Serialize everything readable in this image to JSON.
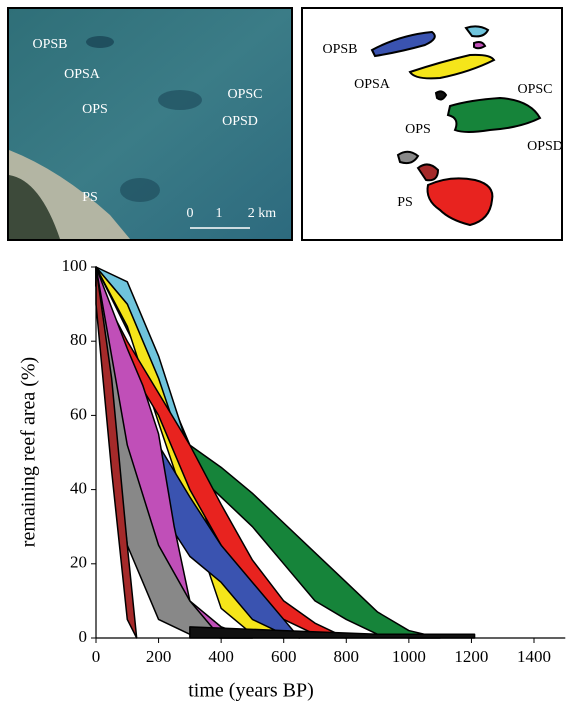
{
  "satellite": {
    "labels": [
      "OPSB",
      "OPSA",
      "OPS",
      "OPSC",
      "OPSD",
      "PS"
    ],
    "scale": [
      "0",
      "1",
      "2 km"
    ]
  },
  "map": {
    "labels": [
      "OPSB",
      "OPSA",
      "OPSC",
      "OPS",
      "OPSD",
      "PS"
    ]
  },
  "chart_data": {
    "type": "band",
    "xlabel": "time (years BP)",
    "ylabel": "remaining reef area (%)",
    "xlim": [
      0,
      1500
    ],
    "xticks": [
      0,
      200,
      400,
      600,
      800,
      1000,
      1200,
      1400
    ],
    "ylim": [
      0,
      100
    ],
    "yticks": [
      0,
      20,
      40,
      60,
      80,
      100
    ],
    "series": [
      {
        "color": "#16843a",
        "x": [
          0,
          200,
          300,
          400,
          500,
          600,
          700,
          800,
          900,
          1000,
          1100
        ],
        "upper": [
          100,
          72,
          52,
          46,
          39,
          31,
          23,
          15,
          7,
          2,
          0
        ],
        "lower": [
          100,
          66,
          46,
          38,
          30,
          20,
          10,
          5,
          1,
          0,
          0
        ]
      },
      {
        "color": "#6fc4dc",
        "x": [
          0,
          100,
          200,
          300,
          400,
          500,
          600
        ],
        "upper": [
          100,
          96,
          76,
          50,
          25,
          9,
          0
        ],
        "lower": [
          100,
          90,
          64,
          40,
          15,
          3,
          0
        ]
      },
      {
        "color": "#f5e51a",
        "x": [
          0,
          100,
          200,
          300,
          400,
          500,
          600
        ],
        "upper": [
          100,
          90,
          70,
          45,
          20,
          8,
          0
        ],
        "lower": [
          100,
          84,
          58,
          33,
          8,
          1,
          0
        ]
      },
      {
        "color": "#e8231f",
        "x": [
          0,
          100,
          200,
          300,
          400,
          500,
          600,
          700,
          800
        ],
        "upper": [
          96,
          80,
          66,
          52,
          36,
          21,
          10,
          4,
          0
        ],
        "lower": [
          95,
          74,
          60,
          40,
          25,
          12,
          5,
          1,
          0
        ]
      },
      {
        "color": "#3a53b0",
        "x": [
          0,
          100,
          200,
          300,
          400,
          500,
          600,
          650
        ],
        "upper": [
          100,
          70,
          52,
          38,
          25,
          15,
          5,
          0
        ],
        "lower": [
          95,
          58,
          35,
          22,
          15,
          5,
          1,
          0
        ]
      },
      {
        "color": "#c04fb8",
        "x": [
          0,
          100,
          150,
          200,
          250,
          300,
          400,
          500
        ],
        "upper": [
          100,
          78,
          68,
          55,
          30,
          10,
          3,
          0
        ],
        "lower": [
          95,
          40,
          28,
          20,
          5,
          1,
          0,
          0
        ]
      },
      {
        "color": "#888888",
        "x": [
          0,
          100,
          200,
          300,
          400
        ],
        "upper": [
          100,
          52,
          25,
          10,
          0
        ],
        "lower": [
          95,
          25,
          5,
          1,
          0
        ]
      },
      {
        "color": "#a52a2a",
        "x": [
          0,
          50,
          100,
          130
        ],
        "upper": [
          100,
          70,
          25,
          0
        ],
        "lower": [
          90,
          45,
          5,
          0
        ]
      },
      {
        "color": "#111111",
        "x": [
          300,
          600,
          900,
          1210
        ],
        "upper": [
          3,
          2,
          1,
          1
        ],
        "lower": [
          0,
          0,
          0,
          0
        ]
      }
    ]
  }
}
